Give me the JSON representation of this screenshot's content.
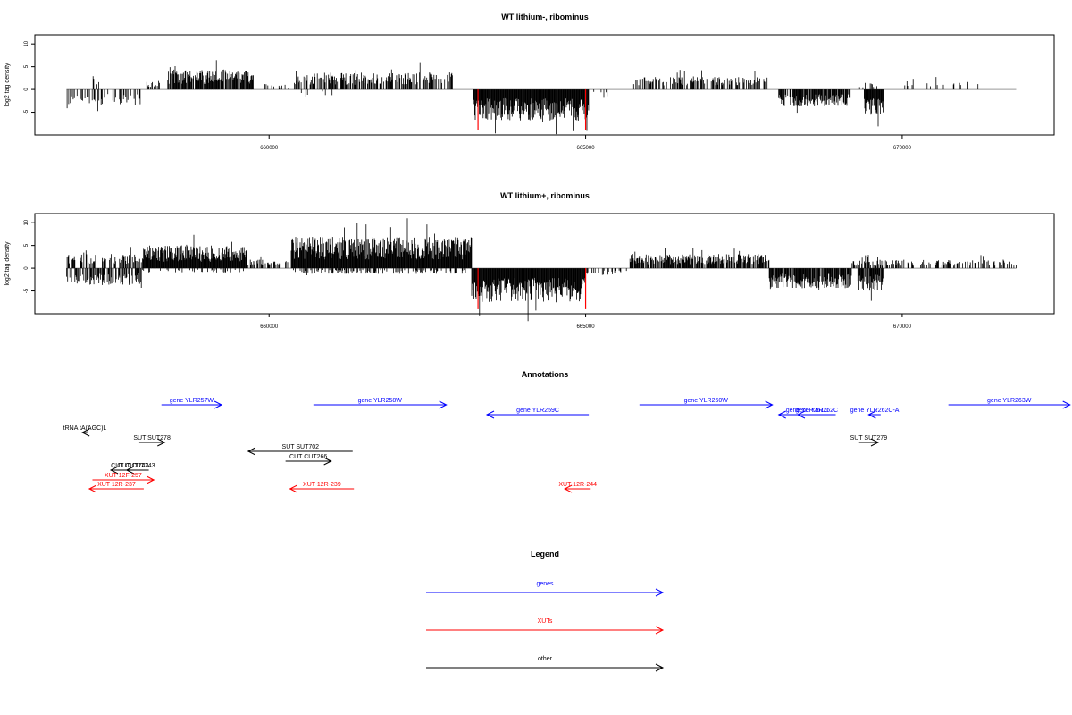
{
  "chart_data": [
    {
      "type": "bar",
      "title": "WT lithium-, ribominus",
      "ylabel": "log2 tag density",
      "xlabel": "",
      "ylim": [
        -10,
        12
      ],
      "yticks": [
        -5,
        0,
        5,
        10
      ],
      "xlim": [
        656300,
        672400
      ],
      "xticks": [
        660000,
        665000,
        670000
      ],
      "xtick_labels": [
        "660000",
        "665000",
        "670000"
      ],
      "axis_range": [
        656800,
        671800
      ],
      "colors": {
        "bars": "#000000",
        "highlight": "#ff0000",
        "axis": "#999999"
      },
      "segments": [
        {
          "start": 656800,
          "end": 658000,
          "strand": "-",
          "level": 2.8,
          "density": 0.35
        },
        {
          "start": 657150,
          "end": 657320,
          "strand": "+",
          "level": 2.5,
          "density": 0.3
        },
        {
          "start": 658050,
          "end": 658300,
          "strand": "+",
          "level": 1.5,
          "density": 0.5
        },
        {
          "start": 658400,
          "end": 659750,
          "strand": "+",
          "level": 3.5,
          "density": 0.9
        },
        {
          "start": 659900,
          "end": 660400,
          "strand": "+",
          "level": 1.0,
          "density": 0.1
        },
        {
          "start": 660400,
          "end": 662900,
          "strand": "+",
          "level": 3.0,
          "density": 0.6
        },
        {
          "start": 660500,
          "end": 661000,
          "strand": "-",
          "level": 1.2,
          "density": 0.15
        },
        {
          "start": 663230,
          "end": 665050,
          "strand": "-",
          "level": 5.5,
          "density": 1.0
        },
        {
          "start": 665050,
          "end": 665500,
          "strand": "-",
          "level": 1.5,
          "density": 0.1
        },
        {
          "start": 665750,
          "end": 667900,
          "strand": "+",
          "level": 2.2,
          "density": 0.5
        },
        {
          "start": 668050,
          "end": 669200,
          "strand": "-",
          "level": 3.0,
          "density": 0.8
        },
        {
          "start": 669300,
          "end": 669600,
          "strand": "+",
          "level": 1.2,
          "density": 0.2
        },
        {
          "start": 669400,
          "end": 669700,
          "strand": "-",
          "level": 4.5,
          "density": 1.0
        },
        {
          "start": 669900,
          "end": 671200,
          "strand": "+",
          "level": 1.5,
          "density": 0.12
        }
      ],
      "highlights": [
        {
          "x": 663300,
          "value": -9
        },
        {
          "x": 665000,
          "value": -9
        }
      ]
    },
    {
      "type": "bar",
      "title": "WT lithium+, ribominus",
      "ylabel": "log2 tag density",
      "xlabel": "",
      "ylim": [
        -10,
        12
      ],
      "yticks": [
        -5,
        0,
        5,
        10
      ],
      "xlim": [
        656300,
        672400
      ],
      "xticks": [
        660000,
        665000,
        670000
      ],
      "xtick_labels": [
        "660000",
        "665000",
        "670000"
      ],
      "axis_range": [
        656800,
        671800
      ],
      "colors": {
        "bars": "#000000",
        "highlight": "#ff0000",
        "axis": "#999999"
      },
      "segments": [
        {
          "start": 656800,
          "end": 658000,
          "strand": "+",
          "level": 2.5,
          "density": 0.5
        },
        {
          "start": 656800,
          "end": 658000,
          "strand": "-",
          "level": 3.0,
          "density": 0.5
        },
        {
          "start": 658000,
          "end": 659650,
          "strand": "+",
          "level": 4.0,
          "density": 1.0
        },
        {
          "start": 658000,
          "end": 659650,
          "strand": "-",
          "level": 0.8,
          "density": 0.2
        },
        {
          "start": 659650,
          "end": 660300,
          "strand": "+",
          "level": 1.5,
          "density": 0.5
        },
        {
          "start": 660350,
          "end": 663200,
          "strand": "+",
          "level": 5.5,
          "density": 1.0
        },
        {
          "start": 660350,
          "end": 663200,
          "strand": "-",
          "level": 1.0,
          "density": 0.3
        },
        {
          "start": 663200,
          "end": 665000,
          "strand": "-",
          "level": 6.0,
          "density": 1.0
        },
        {
          "start": 665000,
          "end": 665700,
          "strand": "-",
          "level": 1.2,
          "density": 0.3
        },
        {
          "start": 665700,
          "end": 667900,
          "strand": "+",
          "level": 2.5,
          "density": 0.8
        },
        {
          "start": 667900,
          "end": 669200,
          "strand": "-",
          "level": 3.5,
          "density": 0.9
        },
        {
          "start": 669200,
          "end": 669700,
          "strand": "+",
          "level": 1.5,
          "density": 0.6
        },
        {
          "start": 669300,
          "end": 669700,
          "strand": "-",
          "level": 4.0,
          "density": 0.9
        },
        {
          "start": 669700,
          "end": 671800,
          "strand": "+",
          "level": 1.5,
          "density": 0.35
        }
      ],
      "highlights": [
        {
          "x": 663300,
          "value": -9
        },
        {
          "x": 665000,
          "value": -9
        }
      ]
    }
  ],
  "annotations": {
    "title": "Annotations",
    "features": [
      {
        "label": "gene YLR257W",
        "start": 658300,
        "end": 659250,
        "strand": "+",
        "row": 0,
        "type": "gene"
      },
      {
        "label": "gene YLR258W",
        "start": 660700,
        "end": 662800,
        "strand": "+",
        "row": 0,
        "type": "gene"
      },
      {
        "label": "gene YLR259C",
        "start": 663440,
        "end": 665050,
        "strand": "-",
        "row": 1,
        "type": "gene"
      },
      {
        "label": "gene YLR260W",
        "start": 665850,
        "end": 667950,
        "strand": "+",
        "row": 0,
        "type": "gene"
      },
      {
        "label": "gene YLR261C",
        "start": 668050,
        "end": 668950,
        "strand": "-",
        "row": 1,
        "type": "gene"
      },
      {
        "label": "gene YLR262C",
        "start": 668350,
        "end": 668950,
        "strand": "-",
        "row": 1,
        "type": "gene"
      },
      {
        "label": "gene YLR262C-A",
        "start": 669470,
        "end": 669660,
        "strand": "-",
        "row": 1,
        "type": "gene"
      },
      {
        "label": "gene YLR263W",
        "start": 670730,
        "end": 672650,
        "strand": "+",
        "row": 0,
        "type": "gene"
      },
      {
        "label": "tRNA tA(AGC)L",
        "start": 657050,
        "end": 657130,
        "strand": "-",
        "row": 2,
        "type": "other"
      },
      {
        "label": "SUT SUT278",
        "start": 657950,
        "end": 658350,
        "strand": "+",
        "row": 3,
        "type": "other"
      },
      {
        "label": "SUT SUT702",
        "start": 659670,
        "end": 661320,
        "strand": "-",
        "row": 4,
        "type": "other"
      },
      {
        "label": "CUT CUT266",
        "start": 660260,
        "end": 660980,
        "strand": "+",
        "row": 5,
        "type": "other"
      },
      {
        "label": "SUT SUT279",
        "start": 669320,
        "end": 669620,
        "strand": "+",
        "row": 3,
        "type": "other"
      },
      {
        "label": "CUT CUT743",
        "start": 657500,
        "end": 658100,
        "strand": "-",
        "row": 6,
        "type": "other"
      },
      {
        "label": "CUT CUT743",
        "start": 657750,
        "end": 658050,
        "strand": "-",
        "row": 6,
        "type": "other"
      },
      {
        "label": "XUT 12F-257",
        "start": 657210,
        "end": 658180,
        "strand": "+",
        "row": 7,
        "type": "xut"
      },
      {
        "label": "XUT 12R-237",
        "start": 657160,
        "end": 658020,
        "strand": "-",
        "row": 8,
        "type": "xut"
      },
      {
        "label": "XUT 12R-239",
        "start": 660330,
        "end": 661340,
        "strand": "-",
        "row": 8,
        "type": "xut"
      },
      {
        "label": "XUT 12R-244",
        "start": 664670,
        "end": 665080,
        "strand": "-",
        "row": 8,
        "type": "xut"
      }
    ]
  },
  "legend": {
    "title": "Legend",
    "items": [
      {
        "label": "genes",
        "color": "#0000ff"
      },
      {
        "label": "XUTs",
        "color": "#ff0000"
      },
      {
        "label": "other",
        "color": "#000000"
      }
    ]
  }
}
